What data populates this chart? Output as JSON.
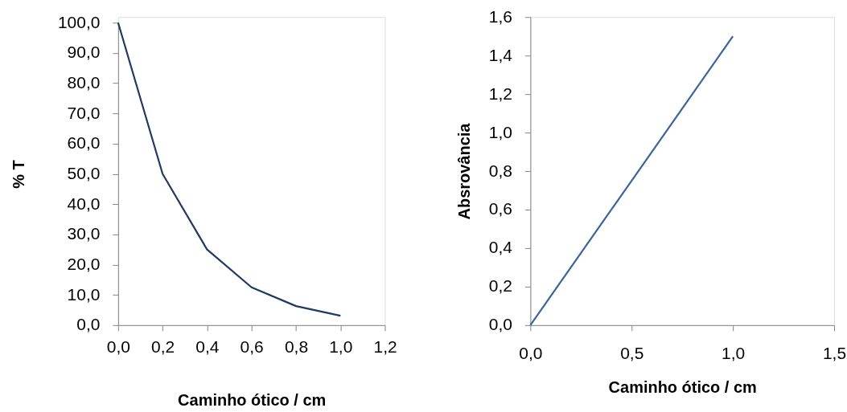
{
  "chart_data": [
    {
      "type": "line",
      "xlabel": "Caminho ótico / cm",
      "ylabel": "% T",
      "x": [
        0,
        0.2,
        0.4,
        0.6,
        0.8,
        1.0
      ],
      "series": [
        {
          "color": "#1f3864",
          "values": [
            100,
            50,
            25,
            12.5,
            6.3,
            3.1
          ]
        }
      ],
      "xlim": [
        0,
        1.2
      ],
      "xticks": [
        {
          "value": 0,
          "label": "0,0"
        },
        {
          "value": 0.2,
          "label": "0,2"
        },
        {
          "value": 0.4,
          "label": "0,4"
        },
        {
          "value": 0.6,
          "label": "0,6"
        },
        {
          "value": 0.8,
          "label": "0,8"
        },
        {
          "value": 1.0,
          "label": "1,0"
        },
        {
          "value": 1.2,
          "label": "1,2"
        }
      ],
      "ylim": [
        0,
        100
      ],
      "yticks": [
        {
          "value": 0,
          "label": "0,0"
        },
        {
          "value": 10,
          "label": "10,0"
        },
        {
          "value": 20,
          "label": "20,0"
        },
        {
          "value": 30,
          "label": "30,0"
        },
        {
          "value": 40,
          "label": "40,0"
        },
        {
          "value": 50,
          "label": "50,0"
        },
        {
          "value": 60,
          "label": "60,0"
        },
        {
          "value": 70,
          "label": "70,0"
        },
        {
          "value": 80,
          "label": "80,0"
        },
        {
          "value": 90,
          "label": "90,0"
        },
        {
          "value": 100,
          "label": "100,0"
        }
      ],
      "grid": false,
      "marker": "none",
      "line_style": "solid"
    },
    {
      "type": "line",
      "xlabel": "Caminho ótico / cm",
      "ylabel": "Absrovância",
      "x": [
        0,
        0.2,
        0.4,
        0.6,
        0.8,
        1.0
      ],
      "series": [
        {
          "color": "#3a64a0",
          "values": [
            0,
            0.3,
            0.6,
            0.9,
            1.2,
            1.5
          ]
        }
      ],
      "xlim": [
        0,
        1.5
      ],
      "xticks": [
        {
          "value": 0,
          "label": "0,0"
        },
        {
          "value": 0.5,
          "label": "0,5"
        },
        {
          "value": 1.0,
          "label": "1,0"
        },
        {
          "value": 1.5,
          "label": "1,5"
        }
      ],
      "ylim": [
        0,
        1.6
      ],
      "yticks": [
        {
          "value": 0,
          "label": "0,0"
        },
        {
          "value": 0.2,
          "label": "0,2"
        },
        {
          "value": 0.4,
          "label": "0,4"
        },
        {
          "value": 0.6,
          "label": "0,6"
        },
        {
          "value": 0.8,
          "label": "0,8"
        },
        {
          "value": 1.0,
          "label": "1,0"
        },
        {
          "value": 1.2,
          "label": "1,2"
        },
        {
          "value": 1.4,
          "label": "1,4"
        },
        {
          "value": 1.6,
          "label": "1,6"
        }
      ],
      "grid": false,
      "marker": "none",
      "line_style": "solid"
    }
  ]
}
